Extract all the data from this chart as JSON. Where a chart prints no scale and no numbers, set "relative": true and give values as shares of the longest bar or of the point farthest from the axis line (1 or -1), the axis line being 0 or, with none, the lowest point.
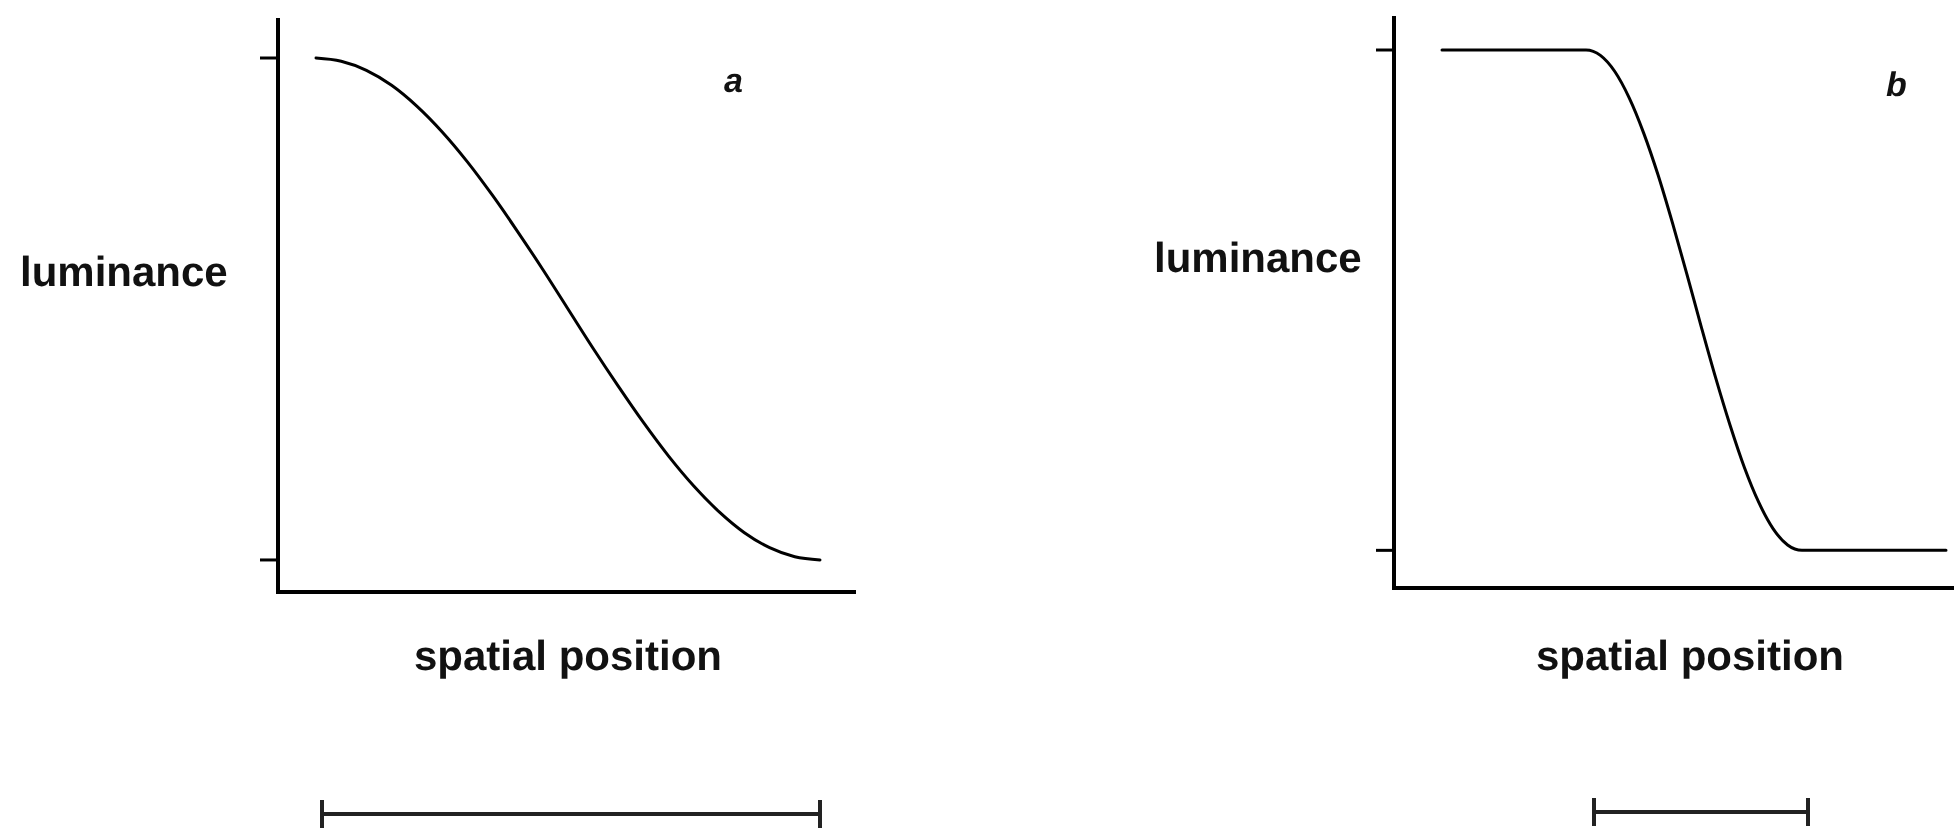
{
  "chart_data": [
    {
      "type": "line",
      "relative": true,
      "ylabel": "luminance",
      "xlabel": "spatial position",
      "annotations": [
        "a"
      ],
      "color": "#000000",
      "categories": [
        null,
        null,
        null,
        null,
        null,
        null,
        null,
        null,
        null,
        null,
        null,
        null,
        null,
        null,
        null,
        null,
        null,
        null,
        null,
        null,
        null
      ],
      "values": [
        1,
        0.994,
        0.977,
        0.949,
        0.91,
        0.862,
        0.806,
        0.743,
        0.675,
        0.604,
        0.53,
        0.456,
        0.385,
        0.317,
        0.254,
        0.198,
        0.15,
        0.111,
        0.083,
        0.066,
        0.06
      ]
    },
    {
      "type": "line",
      "relative": true,
      "ylabel": "luminance",
      "xlabel": "spatial position",
      "annotations": [
        "b"
      ],
      "color": "#000000",
      "categories": [
        null,
        null,
        null,
        null,
        null,
        null,
        null,
        null,
        null,
        null,
        null,
        null,
        null,
        null,
        null,
        null,
        null,
        null,
        null,
        null,
        null,
        null,
        null,
        null,
        null,
        null,
        null,
        null,
        null,
        null,
        null,
        null,
        null,
        null,
        null,
        null
      ],
      "values": [
        1,
        1,
        1,
        1,
        1,
        1,
        1,
        1,
        1,
        1,
        1,
        0.99,
        0.96,
        0.911,
        0.846,
        0.768,
        0.679,
        0.584,
        0.486,
        0.391,
        0.303,
        0.224,
        0.159,
        0.11,
        0.08,
        0.07,
        0.07,
        0.07,
        0.07,
        0.07,
        0.07,
        0.07,
        0.07,
        0.07,
        0.07,
        0.07
      ]
    }
  ]
}
